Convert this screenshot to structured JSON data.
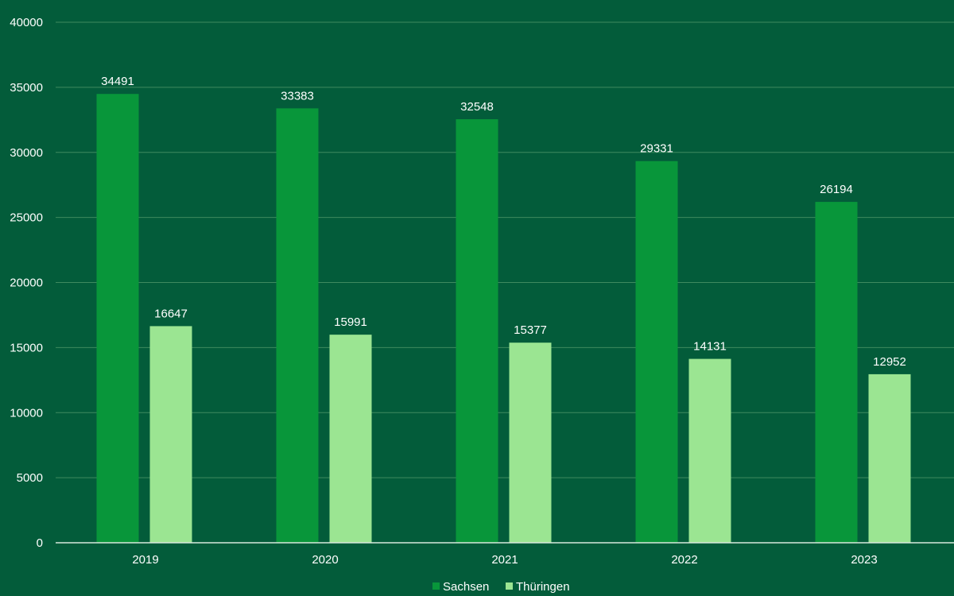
{
  "colors": {
    "background": "#035c3a",
    "gridline": "#3f8a5f",
    "axis": "#d8e8dc",
    "text": "#ffffff"
  },
  "chart_data": {
    "type": "bar",
    "title": "",
    "xlabel": "",
    "ylabel": "",
    "categories": [
      "2019",
      "2020",
      "2021",
      "2022",
      "2023"
    ],
    "series": [
      {
        "name": "Sachsen",
        "color": "#08963a",
        "values": [
          34491,
          33383,
          32548,
          29331,
          26194
        ]
      },
      {
        "name": "Thüringen",
        "color": "#9be592",
        "values": [
          16647,
          15991,
          15377,
          14131,
          12952
        ]
      }
    ],
    "ylim": [
      0,
      40000
    ],
    "yticks": [
      0,
      5000,
      10000,
      15000,
      20000,
      25000,
      30000,
      35000,
      40000
    ],
    "grid": true,
    "legend": "bottom-center",
    "data_labels": true
  }
}
